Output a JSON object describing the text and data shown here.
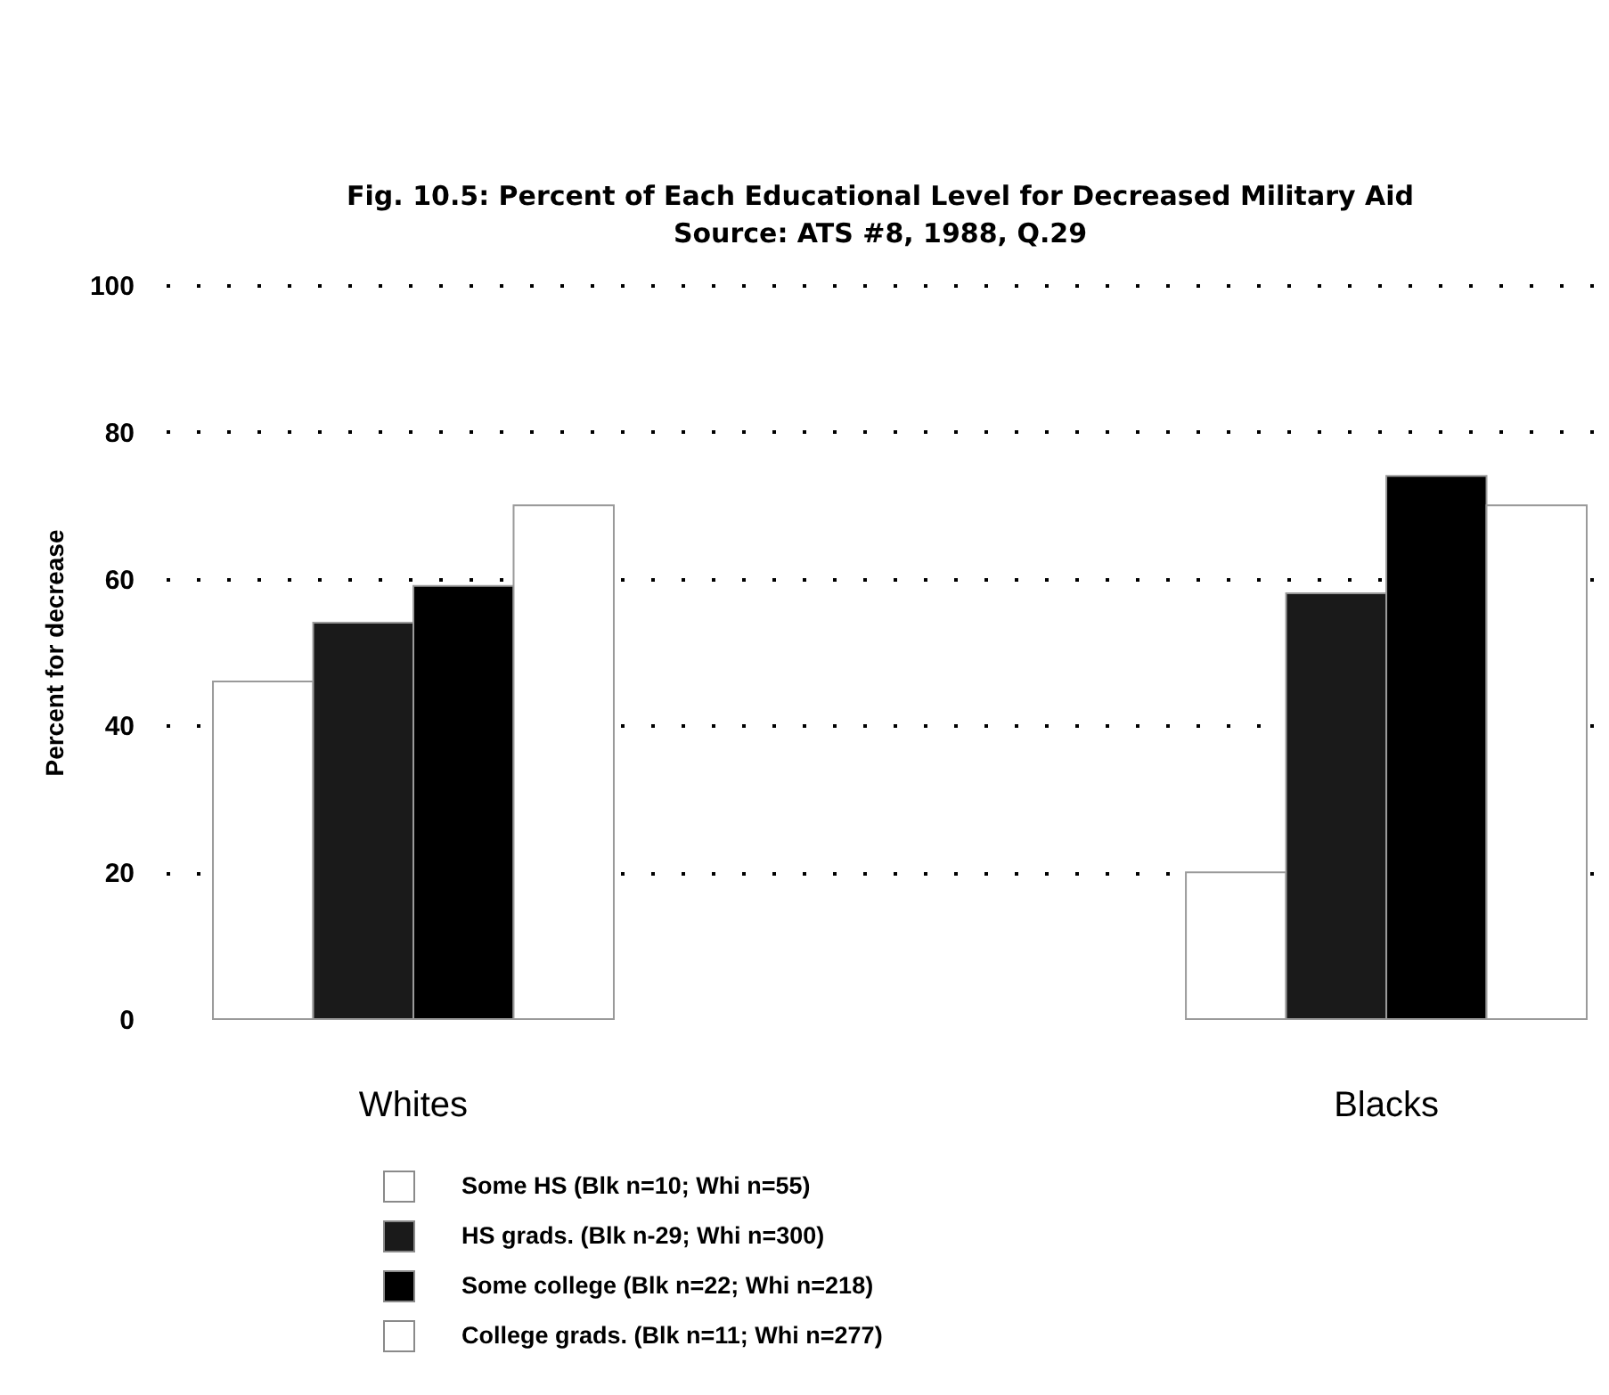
{
  "chart_data": {
    "type": "bar",
    "title": "Fig. 10.5: Percent of Each Educational Level for Decreased Military Aid",
    "subtitle": "Source: ATS #8, 1988, Q.29",
    "ylabel": "Percent for decrease",
    "categories": [
      "Whites",
      "Blacks"
    ],
    "series": [
      {
        "name": "Some HS (Blk n=10; Whi n=55)",
        "color": "#ffffff",
        "values": [
          46,
          20
        ]
      },
      {
        "name": "HS grads. (Blk n-29; Whi n=300)",
        "color": "#1a1a1a",
        "values": [
          54,
          58
        ]
      },
      {
        "name": "Some college (Blk n=22; Whi n=218)",
        "color": "#000000",
        "values": [
          59,
          74
        ]
      },
      {
        "name": "College grads. (Blk n=11; Whi n=277)",
        "color": "#ffffff",
        "values": [
          70,
          70
        ]
      }
    ],
    "ylim": [
      0,
      100
    ],
    "yticks": [
      0,
      20,
      40,
      60,
      80,
      100
    ],
    "grid": "y",
    "legend": "bottom"
  }
}
